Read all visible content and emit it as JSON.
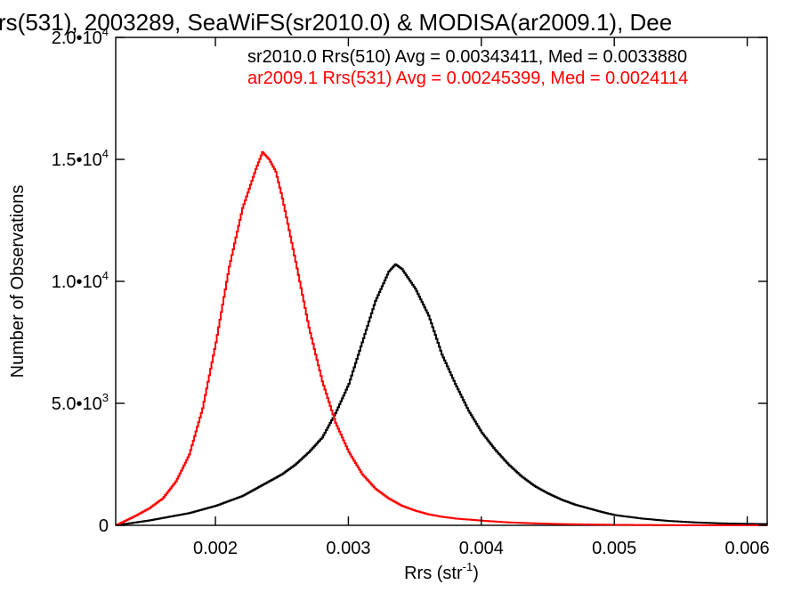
{
  "chart_data": {
    "type": "line",
    "title": "rs(531), 2003289, SeaWiFS(sr2010.0) & MODISA(ar2009.1), Dee",
    "xlabel": {
      "base": "Rrs (str",
      "sup": "-1",
      "close": ")"
    },
    "ylabel": "Number of Observations",
    "xlim": [
      0.00125,
      0.00615
    ],
    "ylim": [
      0,
      20000
    ],
    "x_ticks": [
      {
        "value": 0.002,
        "label": "0.002"
      },
      {
        "value": 0.003,
        "label": "0.003"
      },
      {
        "value": 0.004,
        "label": "0.004"
      },
      {
        "value": 0.005,
        "label": "0.005"
      },
      {
        "value": 0.006,
        "label": "0.006"
      }
    ],
    "y_ticks": [
      {
        "value": 0,
        "mant": "0",
        "exp": ""
      },
      {
        "value": 5000,
        "mant": "5.0•10",
        "exp": "3"
      },
      {
        "value": 10000,
        "mant": "1.0•10",
        "exp": "4"
      },
      {
        "value": 15000,
        "mant": "1.5•10",
        "exp": "4"
      },
      {
        "value": 20000,
        "mant": "2.0•10",
        "exp": "4"
      }
    ],
    "legend_placement": "top-right",
    "series": [
      {
        "name": "sr2010.0 Rrs(510) Avg = 0.00343411, Med = 0.0033880",
        "color": "#000000",
        "x": [
          0.00125,
          0.0015,
          0.0018,
          0.002,
          0.0022,
          0.0024,
          0.0025,
          0.0026,
          0.0027,
          0.0028,
          0.0029,
          0.003,
          0.0031,
          0.0032,
          0.0033,
          0.00335,
          0.0034,
          0.0035,
          0.0036,
          0.0037,
          0.0038,
          0.0039,
          0.004,
          0.0041,
          0.0042,
          0.0043,
          0.0044,
          0.0045,
          0.0046,
          0.0047,
          0.0048,
          0.0049,
          0.005,
          0.0052,
          0.0054,
          0.0056,
          0.0058,
          0.006,
          0.00615
        ],
        "y": [
          0,
          200,
          500,
          800,
          1200,
          1800,
          2100,
          2500,
          3000,
          3600,
          4600,
          5800,
          7500,
          9200,
          10400,
          10700,
          10500,
          9700,
          8600,
          7000,
          5800,
          4700,
          3800,
          3100,
          2500,
          2000,
          1600,
          1300,
          1050,
          850,
          700,
          550,
          420,
          280,
          180,
          120,
          80,
          60,
          50
        ]
      },
      {
        "name": "ar2009.1 Rrs(531) Avg = 0.00245399, Med = 0.0024114",
        "color": "#ff0000",
        "x": [
          0.00125,
          0.0014,
          0.0015,
          0.0016,
          0.0017,
          0.0018,
          0.0019,
          0.002,
          0.0021,
          0.0022,
          0.0023,
          0.00235,
          0.0024,
          0.00245,
          0.0025,
          0.0026,
          0.0027,
          0.0028,
          0.0029,
          0.003,
          0.0031,
          0.0032,
          0.0033,
          0.0034,
          0.0035,
          0.0036,
          0.0037,
          0.0038,
          0.004,
          0.0042,
          0.0044,
          0.0046,
          0.005,
          0.0055,
          0.00615
        ],
        "y": [
          0,
          400,
          700,
          1100,
          1800,
          2900,
          4800,
          7500,
          10600,
          13000,
          14600,
          15300,
          15000,
          14500,
          13400,
          10800,
          8100,
          5900,
          4200,
          3000,
          2100,
          1500,
          1100,
          800,
          600,
          450,
          350,
          280,
          190,
          120,
          80,
          50,
          20,
          5,
          0
        ]
      }
    ]
  }
}
